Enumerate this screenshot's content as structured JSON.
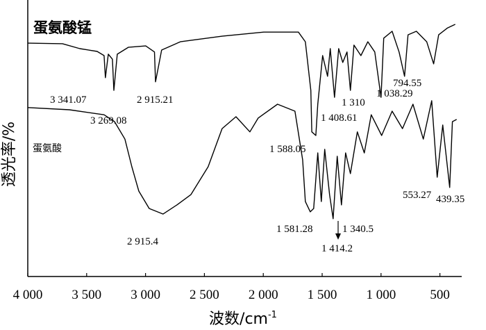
{
  "chart_data": {
    "type": "line",
    "xlabel": {
      "text": "波数/cm",
      "superscript": "-1"
    },
    "ylabel": "透光率/%",
    "xlim": [
      4000,
      315
    ],
    "ylim": [
      0,
      100
    ],
    "xticks": [
      {
        "value": 4000,
        "label": "4 000"
      },
      {
        "value": 3500,
        "label": "3 500"
      },
      {
        "value": 3000,
        "label": "3 000"
      },
      {
        "value": 2500,
        "label": "2 500"
      },
      {
        "value": 2000,
        "label": "2 000"
      },
      {
        "value": 1500,
        "label": "1 500"
      },
      {
        "value": 1000,
        "label": "1 000"
      },
      500
    ],
    "series": [
      {
        "name": "蛋氨酸锰",
        "color": "#000000",
        "x": [
          4000,
          3705,
          3558,
          3411,
          3352,
          3341,
          3316,
          3281,
          3269,
          3240,
          3146,
          2998,
          2924,
          2915,
          2863,
          2704,
          2350,
          1996,
          1702,
          1643,
          1596,
          1588,
          1554,
          1537,
          1496,
          1454,
          1431,
          1395,
          1360,
          1325,
          1289,
          1260,
          1230,
          1171,
          1112,
          1053,
          1000,
          977,
          906,
          847,
          800,
          771,
          700,
          612,
          553,
          511,
          435,
          370
        ],
        "values": [
          84.4,
          84.2,
          82.4,
          81.4,
          79.9,
          71.9,
          80.4,
          78.6,
          67.3,
          80.4,
          82.9,
          83.4,
          81.2,
          70.4,
          81.9,
          84.9,
          86.9,
          88.4,
          88.4,
          84.9,
          67.3,
          52.3,
          51.0,
          62.3,
          79.9,
          72.4,
          82.4,
          64.8,
          82.4,
          77.4,
          81.2,
          67.3,
          83.7,
          79.9,
          84.9,
          81.2,
          64.8,
          86.2,
          88.7,
          81.2,
          72.4,
          87.4,
          88.7,
          84.9,
          76.9,
          87.4,
          89.9,
          91.2
        ]
      },
      {
        "name": "蛋氨酸",
        "color": "#000000",
        "x": [
          4000,
          3646,
          3352,
          3263,
          3175,
          3116,
          3057,
          2969,
          2851,
          2733,
          2615,
          2468,
          2350,
          2232,
          2114,
          2043,
          1879,
          1731,
          1666,
          1643,
          1601,
          1572,
          1537,
          1507,
          1478,
          1437,
          1407,
          1372,
          1336,
          1301,
          1260,
          1201,
          1142,
          1083,
          995,
          906,
          818,
          729,
          641,
          570,
          523,
          476,
          417,
          394,
          358
        ],
        "values": [
          61.1,
          60.3,
          58.5,
          56.0,
          49.7,
          39.7,
          30.9,
          24.6,
          22.6,
          25.9,
          29.6,
          39.7,
          53.5,
          57.8,
          52.3,
          57.3,
          62.3,
          59.8,
          42.2,
          27.1,
          23.4,
          24.6,
          44.7,
          27.1,
          46.0,
          29.6,
          20.9,
          43.5,
          25.9,
          44.7,
          37.2,
          52.3,
          44.7,
          58.5,
          51.0,
          59.8,
          53.5,
          62.3,
          49.7,
          63.6,
          35.9,
          54.8,
          32.2,
          56.0,
          56.8
        ]
      }
    ],
    "annotations": [
      "3 341.07",
      "3 269.08",
      "2 915.21",
      "1 310",
      "1 408.61",
      "1 038.29",
      "794.55",
      "1 588.05",
      "2 915.4",
      "1 581.28",
      "1 340.5",
      "1 414.2",
      "553.27",
      "439.35"
    ]
  }
}
